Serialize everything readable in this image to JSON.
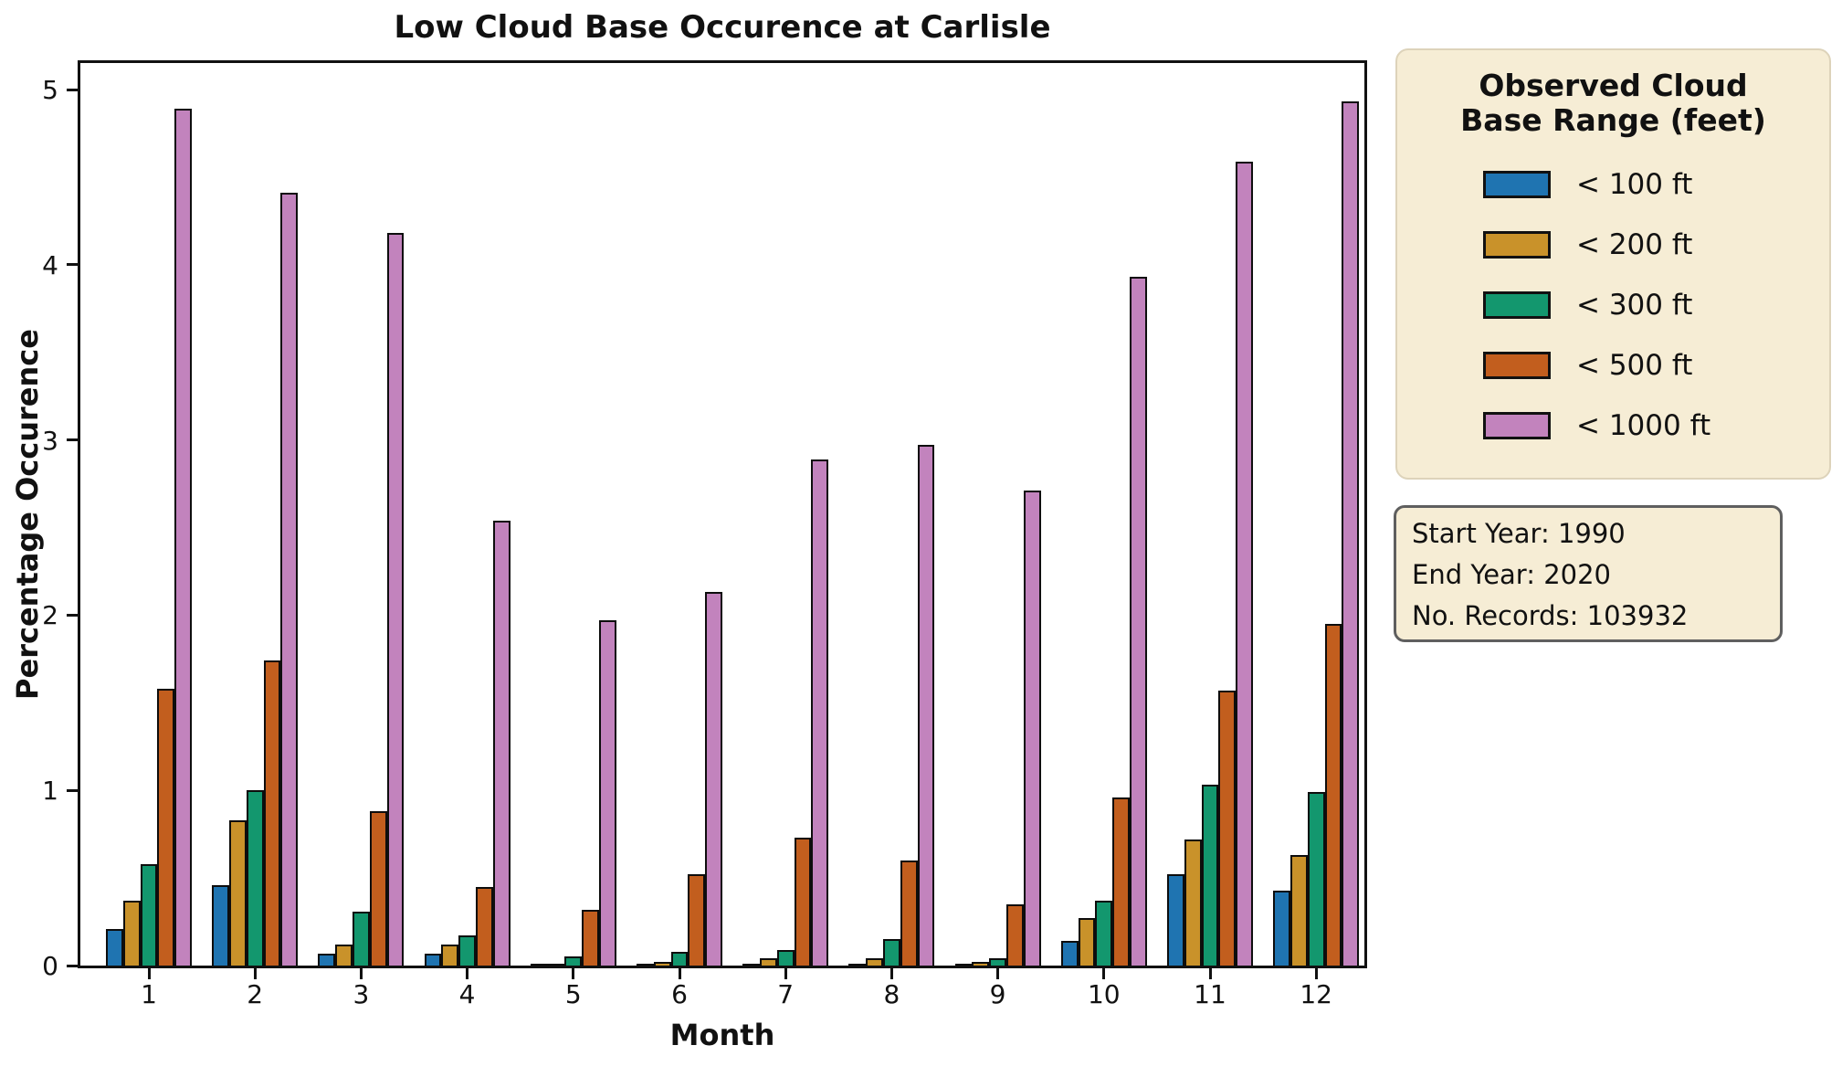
{
  "title": "Low Cloud Base Occurence at Carlisle",
  "axes": {
    "x_label": "Month",
    "y_label": "Percentage Occurence",
    "y_ticks": [
      0,
      1,
      2,
      3,
      4,
      5
    ],
    "x_ticks": [
      "1",
      "2",
      "3",
      "4",
      "5",
      "6",
      "7",
      "8",
      "9",
      "10",
      "11",
      "12"
    ]
  },
  "legend": {
    "title": "Observed Cloud Base Range (feet)",
    "items": [
      {
        "label": "< 100 ft",
        "color": "#1f74b1"
      },
      {
        "label": "< 200 ft",
        "color": "#c9922a"
      },
      {
        "label": "< 300 ft",
        "color": "#13976e"
      },
      {
        "label": "< 500 ft",
        "color": "#c25e1e"
      },
      {
        "label": "< 1000 ft",
        "color": "#c283bd"
      }
    ]
  },
  "info_box": {
    "lines": [
      "Start Year: 1990",
      "End Year: 2020",
      "No. Records: 103932"
    ]
  },
  "chart_data": {
    "type": "bar",
    "title": "Low Cloud Base Occurence at Carlisle",
    "xlabel": "Month",
    "ylabel": "Percentage Occurence",
    "categories": [
      1,
      2,
      3,
      4,
      5,
      6,
      7,
      8,
      9,
      10,
      11,
      12
    ],
    "series": [
      {
        "name": "< 100 ft",
        "color": "#1f74b1",
        "values": [
          0.21,
          0.46,
          0.07,
          0.07,
          0.005,
          0.005,
          0.005,
          0.005,
          0.01,
          0.14,
          0.52,
          0.43
        ]
      },
      {
        "name": "< 200 ft",
        "color": "#c9922a",
        "values": [
          0.37,
          0.83,
          0.12,
          0.12,
          0.01,
          0.02,
          0.04,
          0.04,
          0.02,
          0.27,
          0.72,
          0.63
        ]
      },
      {
        "name": "< 300 ft",
        "color": "#13976e",
        "values": [
          0.58,
          1.0,
          0.31,
          0.17,
          0.05,
          0.08,
          0.09,
          0.15,
          0.04,
          0.37,
          1.03,
          0.99
        ]
      },
      {
        "name": "< 500 ft",
        "color": "#c25e1e",
        "values": [
          1.58,
          1.74,
          0.88,
          0.45,
          0.32,
          0.52,
          0.73,
          0.6,
          0.35,
          0.96,
          1.57,
          1.95
        ]
      },
      {
        "name": "< 1000 ft",
        "color": "#c283bd",
        "values": [
          4.89,
          4.41,
          4.18,
          2.54,
          1.97,
          2.13,
          2.89,
          2.97,
          2.71,
          3.93,
          4.59,
          4.93
        ]
      }
    ],
    "ylim": [
      0,
      5.18
    ],
    "grid": false,
    "legend_position": "outside-right",
    "bar_edge_color": "#0d0d0d"
  }
}
